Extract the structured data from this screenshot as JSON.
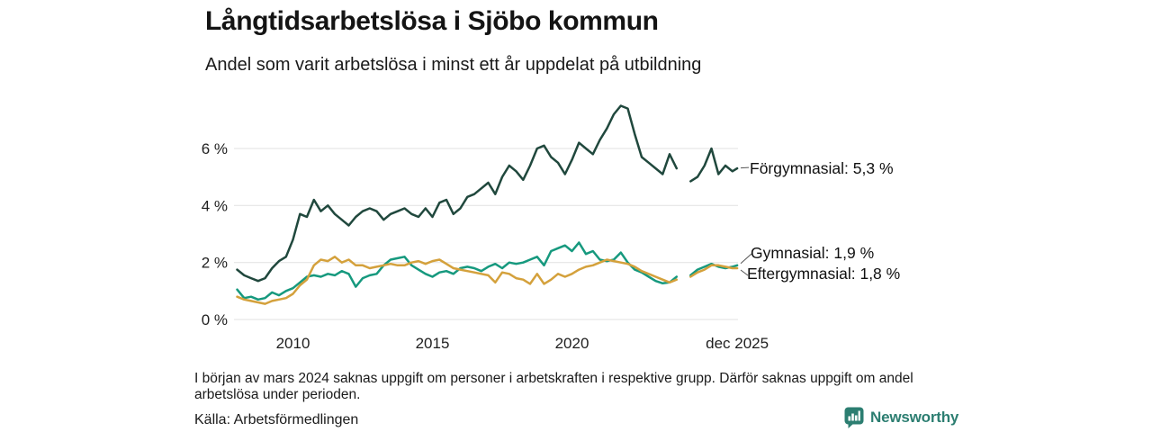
{
  "header": {
    "title": "Långtidsarbetslösa i Sjöbo kommun",
    "subtitle": "Andel som varit arbetslösa i minst ett år uppdelat på utbildning"
  },
  "chart_data": {
    "type": "line",
    "title": "Långtidsarbetslösa i Sjöbo kommun",
    "subtitle": "Andel som varit arbetslösa i minst ett år uppdelat på utbildning",
    "xlabel": "",
    "ylabel": "",
    "ylim": [
      0,
      7.8
    ],
    "xlim": [
      2007.95,
      2025.95
    ],
    "grid": true,
    "legend_position": "labels-at-line-end",
    "yticks": [
      {
        "value": 0,
        "label": "0 %"
      },
      {
        "value": 2,
        "label": "2 %"
      },
      {
        "value": 4,
        "label": "4 %"
      },
      {
        "value": 6,
        "label": "6 %"
      }
    ],
    "xticks": [
      {
        "value": 2010,
        "label": "2010"
      },
      {
        "value": 2015,
        "label": "2015"
      },
      {
        "value": 2020,
        "label": "2020"
      },
      {
        "value": 2025.92,
        "label": "dec 2025"
      }
    ],
    "x": [
      2008,
      2008.25,
      2008.5,
      2008.75,
      2009,
      2009.25,
      2009.5,
      2009.75,
      2010,
      2010.25,
      2010.5,
      2010.75,
      2011,
      2011.25,
      2011.5,
      2011.75,
      2012,
      2012.25,
      2012.5,
      2012.75,
      2013,
      2013.25,
      2013.5,
      2013.75,
      2014,
      2014.25,
      2014.5,
      2014.75,
      2015,
      2015.25,
      2015.5,
      2015.75,
      2016,
      2016.25,
      2016.5,
      2016.75,
      2017,
      2017.25,
      2017.5,
      2017.75,
      2018,
      2018.25,
      2018.5,
      2018.75,
      2019,
      2019.25,
      2019.5,
      2019.75,
      2020,
      2020.25,
      2020.5,
      2020.75,
      2021,
      2021.25,
      2021.5,
      2021.75,
      2022,
      2022.25,
      2022.5,
      2022.75,
      2023,
      2023.25,
      2023.5,
      2023.75,
      2024,
      2024.25,
      2024.5,
      2024.75,
      2025,
      2025.25,
      2025.5,
      2025.75,
      2025.92
    ],
    "series": [
      {
        "id": "forgymnasial",
        "name": "Förgymnasial",
        "end_label": "Förgymnasial: 5,3 %",
        "end_value": 5.3,
        "color": "#20483d",
        "values": [
          1.75,
          1.55,
          1.45,
          1.35,
          1.45,
          1.8,
          2.05,
          2.2,
          2.8,
          3.7,
          3.6,
          4.2,
          3.8,
          4.0,
          3.7,
          3.5,
          3.3,
          3.6,
          3.8,
          3.9,
          3.8,
          3.5,
          3.7,
          3.8,
          3.9,
          3.7,
          3.6,
          3.9,
          3.6,
          4.1,
          4.2,
          3.7,
          3.9,
          4.3,
          4.4,
          4.6,
          4.8,
          4.4,
          5.0,
          5.4,
          5.2,
          4.9,
          5.4,
          6.0,
          6.1,
          5.7,
          5.5,
          5.1,
          5.6,
          6.2,
          6.0,
          5.8,
          6.3,
          6.7,
          7.2,
          7.5,
          7.4,
          6.5,
          5.7,
          5.5,
          5.3,
          5.1,
          5.8,
          5.3,
          null,
          4.85,
          5.0,
          5.4,
          6.0,
          5.1,
          5.4,
          5.2,
          5.3
        ]
      },
      {
        "id": "gymnasial",
        "name": "Gymnasial",
        "end_label": "Gymnasial: 1,9 %",
        "end_value": 1.9,
        "color": "#16997e",
        "values": [
          1.05,
          0.75,
          0.8,
          0.7,
          0.75,
          0.95,
          0.85,
          1.0,
          1.1,
          1.3,
          1.5,
          1.55,
          1.5,
          1.6,
          1.55,
          1.7,
          1.6,
          1.15,
          1.45,
          1.55,
          1.6,
          1.9,
          2.1,
          2.15,
          2.2,
          1.9,
          1.75,
          1.6,
          1.5,
          1.65,
          1.7,
          1.6,
          1.8,
          1.85,
          1.8,
          1.7,
          1.85,
          1.95,
          1.8,
          2.0,
          1.95,
          2.0,
          2.1,
          2.2,
          1.9,
          2.4,
          2.5,
          2.6,
          2.4,
          2.7,
          2.3,
          2.4,
          2.1,
          2.05,
          2.1,
          2.35,
          2.0,
          1.75,
          1.65,
          1.5,
          1.35,
          1.27,
          1.3,
          1.5,
          null,
          1.55,
          1.75,
          1.85,
          1.95,
          1.85,
          1.8,
          1.85,
          1.9
        ]
      },
      {
        "id": "eftergymnasial",
        "name": "Eftergymnasial",
        "end_label": "Eftergymnasial: 1,8 %",
        "end_value": 1.8,
        "color": "#d4a13c",
        "values": [
          0.8,
          0.7,
          0.65,
          0.6,
          0.55,
          0.65,
          0.7,
          0.75,
          0.9,
          1.2,
          1.4,
          1.9,
          2.1,
          2.05,
          2.2,
          2.0,
          2.1,
          1.9,
          1.9,
          1.8,
          1.85,
          1.9,
          1.95,
          1.9,
          1.9,
          2.0,
          2.05,
          1.95,
          2.05,
          2.1,
          1.95,
          1.8,
          1.75,
          1.7,
          1.65,
          1.6,
          1.55,
          1.3,
          1.65,
          1.6,
          1.45,
          1.4,
          1.25,
          1.6,
          1.25,
          1.4,
          1.6,
          1.5,
          1.6,
          1.75,
          1.85,
          1.9,
          2.0,
          2.1,
          2.05,
          2.0,
          1.95,
          1.85,
          1.7,
          1.6,
          1.5,
          1.4,
          1.3,
          1.4,
          null,
          1.5,
          1.65,
          1.75,
          1.9,
          1.9,
          1.85,
          1.8,
          1.8
        ]
      }
    ]
  },
  "footnote": "I början av mars 2024 saknas uppgift om personer i arbetskraften i respektive grupp. Därför saknas uppgift om andel arbetslösa under perioden.",
  "source": "Källa: Arbetsförmedlingen",
  "logo": {
    "text": "Newsworthy",
    "color": "#2c7e71"
  },
  "colors": {
    "background": "#ffffff",
    "gridline": "#e2e2e2",
    "text": "#141414",
    "connector": "#555555"
  }
}
